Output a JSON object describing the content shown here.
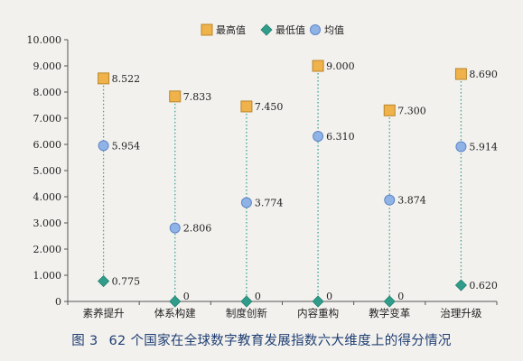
{
  "caption": {
    "figure_number": "图 3",
    "text": "62 个国家在全球数字教育发展指数六大维度上的得分情况"
  },
  "legend": [
    {
      "label": "最高值",
      "marker": "square",
      "color": "#f0b24a"
    },
    {
      "label": "最低值",
      "marker": "diamond",
      "color": "#2f9d8a"
    },
    {
      "label": "均值",
      "marker": "circle",
      "color": "#8fb3e6"
    }
  ],
  "chart_data": {
    "type": "scatter",
    "title": "",
    "xlabel": "",
    "ylabel": "",
    "ylim": [
      0,
      10
    ],
    "yticks": [
      "0",
      "1.000",
      "2.000",
      "3.000",
      "4.000",
      "5.000",
      "6.000",
      "7.000",
      "8.000",
      "9.000",
      "10.000"
    ],
    "categories": [
      "素养提升",
      "体系构建",
      "制度创新",
      "内容重构",
      "教学变革",
      "治理升级"
    ],
    "series": [
      {
        "name": "最高值",
        "values": [
          8.522,
          7.833,
          7.45,
          9.0,
          7.3,
          8.69
        ],
        "labels": [
          "8.522",
          "7.833",
          "7.450",
          "9.000",
          "7.300",
          "8.690"
        ]
      },
      {
        "name": "最低值",
        "values": [
          0.775,
          0,
          0,
          0,
          0,
          0.62
        ],
        "labels": [
          "0.775",
          "0",
          "0",
          "0",
          "0",
          "0.620"
        ]
      },
      {
        "name": "均值",
        "values": [
          5.954,
          2.806,
          3.774,
          6.31,
          3.874,
          5.914
        ],
        "labels": [
          "5.954",
          "2.806",
          "3.774",
          "6.310",
          "3.874",
          "5.914"
        ]
      }
    ],
    "grid": false,
    "legend_position": "top-center"
  }
}
